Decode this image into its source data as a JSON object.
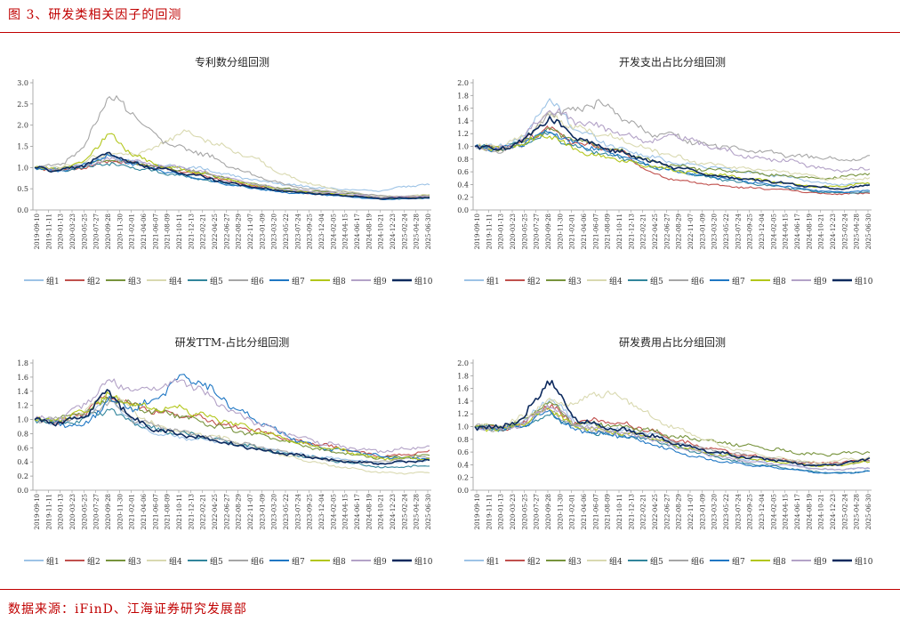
{
  "figure_title": "图 3、研发类相关因子的回测",
  "source": "数据来源：iFinD、江海证券研究发展部",
  "series_colors": [
    "#9dc3e6",
    "#c0504d",
    "#77933c",
    "#d9d9b0",
    "#31859c",
    "#a6a6a6",
    "#1f77c4",
    "#b2c61a",
    "#b3a2c7",
    "#0d2a5e"
  ],
  "chart_data": [
    {
      "type": "line",
      "title": "专利数分组回测",
      "ylim": [
        0,
        3.0
      ],
      "yticks": [
        "0.0",
        "0.5",
        "1.0",
        "1.5",
        "2.0",
        "2.5",
        "3.0"
      ],
      "xticks": [
        "2019-09-10",
        "2019-11-11",
        "2020-01-13",
        "2020-03-23",
        "2020-05-25",
        "2020-07-27",
        "2020-09-28",
        "2020-11-30",
        "2021-02-01",
        "2021-04-06",
        "2021-06-07",
        "2021-08-09",
        "2021-10-11",
        "2021-12-13",
        "2022-02-21",
        "2022-04-25",
        "2022-06-27",
        "2022-08-29",
        "2022-11-07",
        "2023-01-09",
        "2023-03-20",
        "2023-05-22",
        "2023-07-24",
        "2023-09-25",
        "2023-12-04",
        "2024-02-05",
        "2024-04-15",
        "2024-06-17",
        "2024-08-19",
        "2024-10-21",
        "2024-12-23",
        "2025-02-24",
        "2025-04-28",
        "2025-06-30"
      ],
      "series": [
        {
          "name": "组1",
          "values": [
            1.0,
            0.95,
            1.1,
            1.25,
            1.15,
            1.05,
            1.02,
            0.95,
            0.8,
            0.7,
            0.62,
            0.55,
            0.5,
            0.48,
            0.45,
            0.55,
            0.6
          ]
        },
        {
          "name": "组2",
          "values": [
            1.0,
            0.92,
            1.0,
            1.15,
            1.1,
            1.0,
            0.9,
            0.8,
            0.65,
            0.55,
            0.45,
            0.4,
            0.38,
            0.33,
            0.28,
            0.3,
            0.32
          ]
        },
        {
          "name": "组3",
          "values": [
            1.0,
            0.95,
            1.05,
            1.2,
            1.1,
            1.02,
            0.95,
            0.85,
            0.7,
            0.6,
            0.52,
            0.45,
            0.42,
            0.38,
            0.3,
            0.32,
            0.35
          ]
        },
        {
          "name": "组4",
          "values": [
            1.0,
            1.0,
            1.15,
            1.35,
            1.3,
            1.5,
            1.85,
            1.65,
            1.4,
            1.2,
            0.85,
            0.65,
            0.5,
            0.4,
            0.32,
            0.33,
            0.36
          ]
        },
        {
          "name": "组5",
          "values": [
            1.0,
            0.93,
            1.0,
            1.1,
            1.0,
            0.9,
            0.8,
            0.7,
            0.6,
            0.5,
            0.45,
            0.4,
            0.36,
            0.32,
            0.26,
            0.27,
            0.28
          ]
        },
        {
          "name": "组6",
          "values": [
            1.0,
            1.05,
            1.5,
            2.7,
            2.3,
            1.7,
            1.45,
            1.3,
            1.0,
            0.8,
            0.62,
            0.5,
            0.45,
            0.4,
            0.33,
            0.32,
            0.33
          ]
        },
        {
          "name": "组7",
          "values": [
            1.0,
            0.92,
            1.05,
            1.3,
            1.1,
            0.95,
            0.82,
            0.7,
            0.58,
            0.5,
            0.42,
            0.38,
            0.35,
            0.3,
            0.25,
            0.26,
            0.28
          ]
        },
        {
          "name": "组8",
          "values": [
            1.0,
            0.95,
            1.15,
            1.8,
            1.3,
            1.05,
            0.95,
            0.85,
            0.7,
            0.58,
            0.48,
            0.42,
            0.38,
            0.33,
            0.27,
            0.28,
            0.3
          ]
        },
        {
          "name": "组9",
          "values": [
            1.0,
            0.95,
            1.05,
            1.2,
            1.15,
            1.05,
            1.0,
            0.88,
            0.72,
            0.6,
            0.5,
            0.44,
            0.4,
            0.36,
            0.3,
            0.31,
            0.33
          ]
        },
        {
          "name": "组10",
          "values": [
            1.0,
            0.92,
            1.05,
            1.35,
            1.1,
            0.98,
            0.88,
            0.76,
            0.62,
            0.52,
            0.45,
            0.4,
            0.36,
            0.32,
            0.27,
            0.28,
            0.29
          ]
        }
      ]
    },
    {
      "type": "line",
      "title": "开发支出占比分组回测",
      "ylim": [
        0,
        2.0
      ],
      "yticks": [
        "0.0",
        "0.2",
        "0.4",
        "0.6",
        "0.8",
        "1.0",
        "1.2",
        "1.4",
        "1.6",
        "1.8",
        "2.0"
      ],
      "xticks": [
        "2019-09-10",
        "2019-11-11",
        "2020-01-13",
        "2020-03-23",
        "2020-05-25",
        "2020-07-27",
        "2020-09-28",
        "2020-11-30",
        "2021-02-01",
        "2021-04-06",
        "2021-06-07",
        "2021-08-09",
        "2021-10-11",
        "2021-12-13",
        "2022-02-21",
        "2022-04-25",
        "2022-06-27",
        "2022-08-29",
        "2022-11-07",
        "2023-01-09",
        "2023-03-20",
        "2023-05-22",
        "2023-07-24",
        "2023-09-25",
        "2023-12-04",
        "2024-02-05",
        "2024-04-15",
        "2024-06-17",
        "2024-08-19",
        "2024-10-21",
        "2024-12-23",
        "2025-02-24",
        "2025-04-28",
        "2025-06-30"
      ],
      "series": [
        {
          "name": "组1",
          "values": [
            1.0,
            1.0,
            1.15,
            1.75,
            1.3,
            1.1,
            0.95,
            0.85,
            0.75,
            0.7,
            0.65,
            0.6,
            0.55,
            0.5,
            0.42,
            0.4,
            0.42
          ]
        },
        {
          "name": "组2",
          "values": [
            1.0,
            0.95,
            1.1,
            1.3,
            1.05,
            1.0,
            0.9,
            0.6,
            0.48,
            0.42,
            0.38,
            0.35,
            0.33,
            0.3,
            0.26,
            0.25,
            0.27
          ]
        },
        {
          "name": "组3",
          "values": [
            1.0,
            0.95,
            1.08,
            1.25,
            1.1,
            1.0,
            0.92,
            0.78,
            0.7,
            0.65,
            0.62,
            0.6,
            0.55,
            0.52,
            0.5,
            0.52,
            0.58
          ]
        },
        {
          "name": "组4",
          "values": [
            1.0,
            1.0,
            1.15,
            1.5,
            1.3,
            1.2,
            1.1,
            0.95,
            0.85,
            0.75,
            0.7,
            0.65,
            0.62,
            0.58,
            0.5,
            0.48,
            0.5
          ]
        },
        {
          "name": "组5",
          "values": [
            1.0,
            0.95,
            1.05,
            1.2,
            1.0,
            0.9,
            0.82,
            0.7,
            0.62,
            0.55,
            0.48,
            0.42,
            0.38,
            0.33,
            0.28,
            0.27,
            0.28
          ]
        },
        {
          "name": "组6",
          "values": [
            1.0,
            0.9,
            1.05,
            1.5,
            1.55,
            1.7,
            1.45,
            1.2,
            1.2,
            1.05,
            1.0,
            0.95,
            0.9,
            0.85,
            0.82,
            0.78,
            0.82
          ]
        },
        {
          "name": "组7",
          "values": [
            1.0,
            0.95,
            1.05,
            1.25,
            1.05,
            0.95,
            0.85,
            0.72,
            0.62,
            0.55,
            0.5,
            0.45,
            0.4,
            0.35,
            0.3,
            0.28,
            0.3
          ]
        },
        {
          "name": "组8",
          "values": [
            1.0,
            0.95,
            1.05,
            1.2,
            0.95,
            0.85,
            0.78,
            0.7,
            0.62,
            0.58,
            0.55,
            0.5,
            0.45,
            0.4,
            0.36,
            0.38,
            0.42
          ]
        },
        {
          "name": "组9",
          "values": [
            1.0,
            0.95,
            1.15,
            1.6,
            1.4,
            1.3,
            1.2,
            1.05,
            1.2,
            1.05,
            0.95,
            0.85,
            0.8,
            0.75,
            0.65,
            0.62,
            0.65
          ]
        },
        {
          "name": "组10",
          "values": [
            1.0,
            0.95,
            1.1,
            1.45,
            1.15,
            1.0,
            0.9,
            0.78,
            0.68,
            0.6,
            0.52,
            0.48,
            0.45,
            0.4,
            0.35,
            0.33,
            0.4
          ]
        }
      ]
    },
    {
      "type": "line",
      "title": "研发TTM-占比分组回测",
      "ylim": [
        0,
        1.8
      ],
      "yticks": [
        "0.0",
        "0.2",
        "0.4",
        "0.6",
        "0.8",
        "1.0",
        "1.2",
        "1.4",
        "1.6",
        "1.8"
      ],
      "xticks": [
        "2019-09-10",
        "2019-11-11",
        "2020-01-13",
        "2020-03-23",
        "2020-05-25",
        "2020-07-27",
        "2020-09-28",
        "2020-11-30",
        "2021-02-01",
        "2021-04-06",
        "2021-06-07",
        "2021-08-09",
        "2021-10-11",
        "2021-12-13",
        "2022-02-21",
        "2022-04-25",
        "2022-06-27",
        "2022-08-29",
        "2022-11-07",
        "2023-01-09",
        "2023-03-20",
        "2023-05-22",
        "2023-07-24",
        "2023-09-25",
        "2023-12-04",
        "2024-02-05",
        "2024-04-15",
        "2024-06-17",
        "2024-08-19",
        "2024-10-21",
        "2024-12-23",
        "2025-02-24",
        "2025-04-28",
        "2025-06-30"
      ],
      "series": [
        {
          "name": "组1",
          "values": [
            1.0,
            0.95,
            1.05,
            1.3,
            0.95,
            0.8,
            0.75,
            0.72,
            0.65,
            0.6,
            0.55,
            0.5,
            0.45,
            0.42,
            0.38,
            0.4,
            0.42
          ]
        },
        {
          "name": "组2",
          "values": [
            1.0,
            0.95,
            1.1,
            1.35,
            1.2,
            1.1,
            1.05,
            1.0,
            0.9,
            0.85,
            0.75,
            0.68,
            0.62,
            0.55,
            0.48,
            0.5,
            0.55
          ]
        },
        {
          "name": "组3",
          "values": [
            1.0,
            1.0,
            1.1,
            1.3,
            1.2,
            1.1,
            1.05,
            0.95,
            0.85,
            0.78,
            0.7,
            0.62,
            0.55,
            0.5,
            0.45,
            0.48,
            0.5
          ]
        },
        {
          "name": "组4",
          "values": [
            1.0,
            0.95,
            1.1,
            1.4,
            1.1,
            0.9,
            0.82,
            0.78,
            0.7,
            0.6,
            0.5,
            0.42,
            0.35,
            0.3,
            0.25,
            0.24,
            0.25
          ]
        },
        {
          "name": "组5",
          "values": [
            1.0,
            0.95,
            1.0,
            1.15,
            0.95,
            0.85,
            0.8,
            0.75,
            0.68,
            0.6,
            0.52,
            0.48,
            0.42,
            0.38,
            0.32,
            0.33,
            0.35
          ]
        },
        {
          "name": "组6",
          "values": [
            1.0,
            1.0,
            1.05,
            1.25,
            1.0,
            0.9,
            0.82,
            0.75,
            0.68,
            0.62,
            0.55,
            0.48,
            0.42,
            0.4,
            0.4,
            0.45,
            0.48
          ]
        },
        {
          "name": "组7",
          "values": [
            1.0,
            0.95,
            0.9,
            1.3,
            1.15,
            1.3,
            1.65,
            1.45,
            1.2,
            1.0,
            0.8,
            0.65,
            0.58,
            0.55,
            0.48,
            0.45,
            0.45
          ]
        },
        {
          "name": "组8",
          "values": [
            1.0,
            1.0,
            1.1,
            1.35,
            1.2,
            1.15,
            1.15,
            1.05,
            0.95,
            0.85,
            0.75,
            0.65,
            0.6,
            0.52,
            0.45,
            0.45,
            0.45
          ]
        },
        {
          "name": "组9",
          "values": [
            1.0,
            1.0,
            1.2,
            1.55,
            1.4,
            1.45,
            1.55,
            1.35,
            1.1,
            0.95,
            0.82,
            0.72,
            0.65,
            0.58,
            0.55,
            0.58,
            0.62
          ]
        },
        {
          "name": "组10",
          "values": [
            1.0,
            0.95,
            1.05,
            1.4,
            1.0,
            0.85,
            0.78,
            0.72,
            0.65,
            0.58,
            0.52,
            0.48,
            0.42,
            0.4,
            0.38,
            0.4,
            0.42
          ]
        }
      ]
    },
    {
      "type": "line",
      "title": "研发费用占比分组回测",
      "ylim": [
        0,
        2.0
      ],
      "yticks": [
        "0.0",
        "0.2",
        "0.4",
        "0.6",
        "0.8",
        "1.0",
        "1.2",
        "1.4",
        "1.6",
        "1.8",
        "2.0"
      ],
      "xticks": [
        "2019-09-10",
        "2019-11-11",
        "2020-01-13",
        "2020-03-23",
        "2020-05-25",
        "2020-07-27",
        "2020-09-28",
        "2020-11-30",
        "2021-02-01",
        "2021-04-06",
        "2021-06-07",
        "2021-08-09",
        "2021-10-11",
        "2021-12-13",
        "2022-02-21",
        "2022-04-25",
        "2022-06-27",
        "2022-08-29",
        "2022-11-07",
        "2023-01-09",
        "2023-03-20",
        "2023-05-22",
        "2023-07-24",
        "2023-09-25",
        "2023-12-04",
        "2024-02-05",
        "2024-04-15",
        "2024-06-17",
        "2024-08-19",
        "2024-10-21",
        "2024-12-23",
        "2025-02-24",
        "2025-04-28",
        "2025-06-30"
      ],
      "series": [
        {
          "name": "组1",
          "values": [
            1.0,
            0.95,
            1.1,
            1.45,
            1.1,
            1.0,
            0.95,
            0.9,
            0.78,
            0.65,
            0.55,
            0.48,
            0.42,
            0.38,
            0.32,
            0.33,
            0.35
          ]
        },
        {
          "name": "组2",
          "values": [
            1.0,
            0.95,
            1.05,
            1.35,
            1.05,
            1.1,
            1.05,
            0.95,
            0.8,
            0.7,
            0.62,
            0.55,
            0.5,
            0.45,
            0.42,
            0.45,
            0.48
          ]
        },
        {
          "name": "组3",
          "values": [
            1.0,
            1.0,
            1.1,
            1.4,
            1.05,
            1.05,
            1.0,
            0.95,
            0.85,
            0.8,
            0.75,
            0.7,
            0.65,
            0.6,
            0.55,
            0.58,
            0.6
          ]
        },
        {
          "name": "组4",
          "values": [
            1.0,
            1.0,
            1.15,
            1.4,
            1.35,
            1.55,
            1.45,
            1.2,
            1.0,
            0.85,
            0.7,
            0.6,
            0.52,
            0.48,
            0.42,
            0.48,
            0.52
          ]
        },
        {
          "name": "组5",
          "values": [
            1.0,
            0.95,
            1.0,
            1.2,
            1.0,
            0.9,
            0.85,
            0.8,
            0.7,
            0.6,
            0.5,
            0.42,
            0.38,
            0.33,
            0.28,
            0.27,
            0.3
          ]
        },
        {
          "name": "组6",
          "values": [
            1.0,
            0.95,
            1.05,
            1.3,
            1.0,
            0.95,
            0.9,
            0.85,
            0.75,
            0.68,
            0.6,
            0.55,
            0.5,
            0.45,
            0.4,
            0.42,
            0.45
          ]
        },
        {
          "name": "组7",
          "values": [
            1.0,
            0.95,
            1.0,
            1.25,
            0.95,
            0.9,
            0.85,
            0.75,
            0.62,
            0.52,
            0.45,
            0.4,
            0.36,
            0.32,
            0.27,
            0.27,
            0.3
          ]
        },
        {
          "name": "组8",
          "values": [
            1.0,
            0.95,
            1.05,
            1.3,
            1.0,
            0.95,
            0.9,
            0.85,
            0.72,
            0.62,
            0.55,
            0.5,
            0.45,
            0.42,
            0.38,
            0.4,
            0.45
          ]
        },
        {
          "name": "组9",
          "values": [
            1.0,
            0.95,
            1.05,
            1.35,
            1.05,
            0.95,
            0.9,
            0.82,
            0.7,
            0.6,
            0.52,
            0.46,
            0.42,
            0.38,
            0.33,
            0.33,
            0.35
          ]
        },
        {
          "name": "组10",
          "values": [
            1.0,
            0.98,
            1.15,
            1.75,
            1.15,
            1.0,
            0.95,
            0.88,
            0.75,
            0.65,
            0.58,
            0.52,
            0.48,
            0.42,
            0.38,
            0.42,
            0.5
          ]
        }
      ]
    }
  ]
}
